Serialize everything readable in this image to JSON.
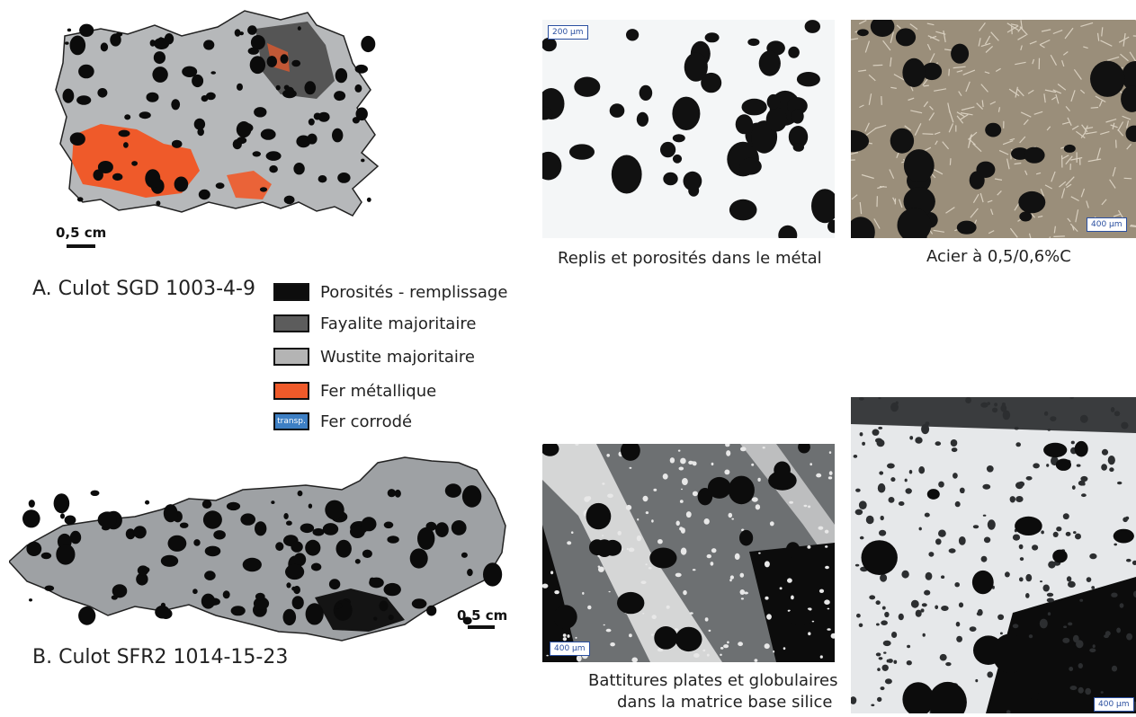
{
  "specimens": {
    "a": {
      "title": "A. Culot SGD 1003-4-9",
      "scale": "0,5 cm"
    },
    "b": {
      "title": "B. Culot SFR2 1014-15-23",
      "scale": "0,5 cm"
    }
  },
  "legend": {
    "items": [
      {
        "label": "Porosités - remplissage",
        "color": "#0d0d0d",
        "swatch_text": ""
      },
      {
        "label": "Fayalite majoritaire",
        "color": "#5c5c5c",
        "swatch_text": ""
      },
      {
        "label": "Wustite majoritaire",
        "color": "#b4b4b4",
        "swatch_text": ""
      },
      {
        "label": "Fer métallique",
        "color": "#ef5a2a",
        "swatch_text": ""
      },
      {
        "label": "Fer corrodé",
        "color": "#3d7fc4",
        "swatch_text": "transp."
      }
    ]
  },
  "micrographs": {
    "top_left": {
      "scale": "200 µm",
      "caption": "Replis et porosités dans le métal"
    },
    "top_right": {
      "scale": "400 µm",
      "caption": "Acier à 0,5/0,6%C"
    },
    "bottom_left": {
      "scale": "400 µm",
      "caption_line1": "Battitures plates et globulaires",
      "caption_line2": "dans la matrice base silice"
    },
    "bottom_right": {
      "scale": "400 µm"
    }
  }
}
